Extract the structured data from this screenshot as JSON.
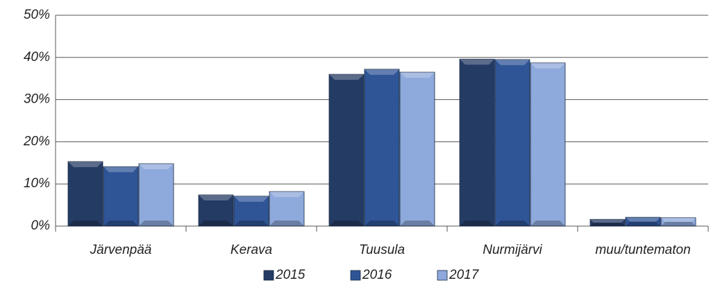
{
  "chart_data": {
    "type": "bar",
    "categories": [
      "Järvenpää",
      "Kerava",
      "Tuusula",
      "Nurmijärvi",
      "muu/tuntematon"
    ],
    "series": [
      {
        "name": "2015",
        "color": "#243b64",
        "values": [
          15.3,
          7.4,
          36.0,
          39.6,
          1.6
        ]
      },
      {
        "name": "2016",
        "color": "#2f5597",
        "values": [
          14.1,
          7.1,
          37.2,
          39.5,
          2.1
        ]
      },
      {
        "name": "2017",
        "color": "#8ea9db",
        "values": [
          14.8,
          8.2,
          36.5,
          38.7,
          2.0
        ]
      }
    ],
    "ylim": [
      0,
      50
    ],
    "yticks": [
      {
        "value": 0,
        "label": "0%"
      },
      {
        "value": 10,
        "label": "10%"
      },
      {
        "value": 20,
        "label": "20%"
      },
      {
        "value": 30,
        "label": "30%"
      },
      {
        "value": 40,
        "label": "40%"
      },
      {
        "value": 50,
        "label": "50%"
      }
    ],
    "grid": true,
    "legend": "bottom"
  }
}
